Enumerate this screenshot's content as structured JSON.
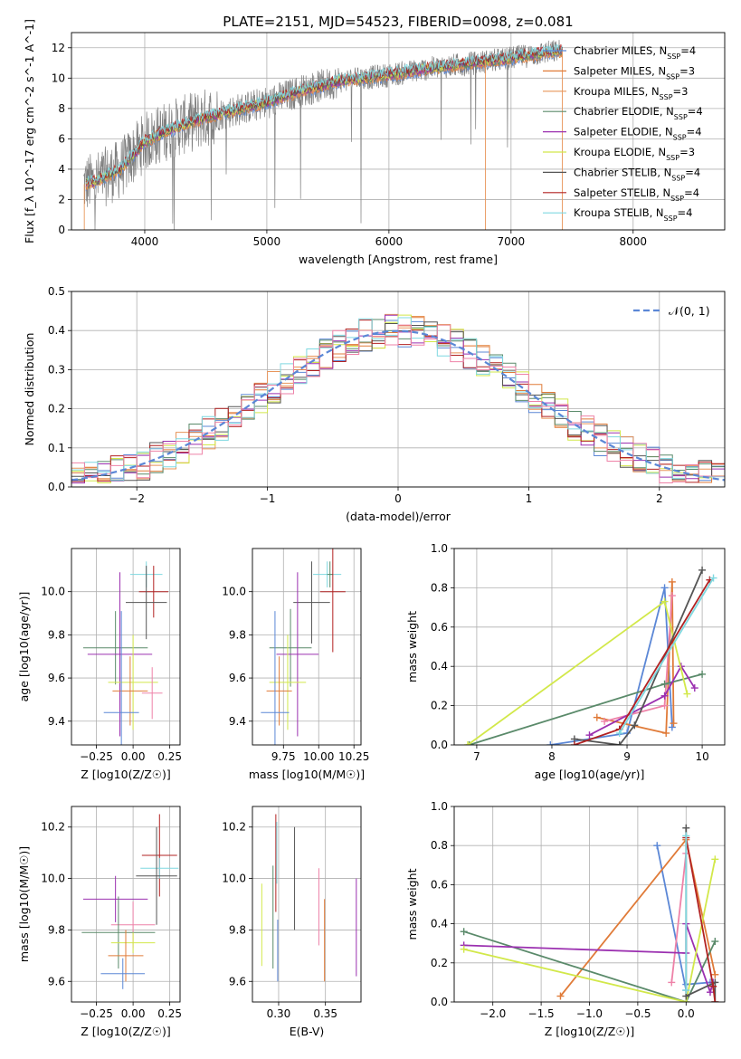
{
  "colors": {
    "chabrier_miles": "#5b87d6",
    "salpeter_miles": "#e07b39",
    "kroupa_miles": "#e8955a",
    "chabrier_elodie": "#5a8a6a",
    "salpeter_elodie": "#9b30b0",
    "kroupa_elodie": "#d2e84a",
    "chabrier_stelib": "#555555",
    "salpeter_stelib": "#b22222",
    "kroupa_stelib": "#7fd8e0",
    "extra_pink": "#ee82a8",
    "extra_blue": "#6a8fe0",
    "spectrum_gray": "#808080",
    "gaussian": "#5b87d6"
  },
  "chart_data": [
    {
      "id": "spectrum",
      "type": "line",
      "title": "PLATE=2151, MJD=54523, FIBERID=0098, z=0.081",
      "xlabel": "wavelength [Angstrom, rest frame]",
      "ylabel": "Flux [f_λ 10^-17 erg cm^-2 s^-1 A^-1]",
      "xlim": [
        3400,
        8750
      ],
      "ylim": [
        0,
        13
      ],
      "xticks": [
        "4000",
        "5000",
        "6000",
        "7000",
        "8000"
      ],
      "yticks": [
        "0",
        "2",
        "4",
        "6",
        "8",
        "10",
        "12"
      ],
      "legend": [
        {
          "label": "Chabrier MILES, N_SSP=4",
          "color": "#5b87d6"
        },
        {
          "label": "Salpeter MILES, N_SSP=3",
          "color": "#e07b39"
        },
        {
          "label": "Kroupa MILES, N_SSP=3",
          "color": "#e8955a"
        },
        {
          "label": "Chabrier ELODIE, N_SSP=4",
          "color": "#5a8a6a"
        },
        {
          "label": "Salpeter ELODIE, N_SSP=4",
          "color": "#9b30b0"
        },
        {
          "label": "Kroupa ELODIE, N_SSP=3",
          "color": "#d2e84a"
        },
        {
          "label": "Chabrier STELIB, N_SSP=4",
          "color": "#555555"
        },
        {
          "label": "Salpeter STELIB, N_SSP=4",
          "color": "#b22222"
        },
        {
          "label": "Kroupa STELIB, N_SSP=4",
          "color": "#7fd8e0"
        }
      ],
      "continuum": {
        "x": [
          3500,
          3600,
          3800,
          4000,
          4200,
          4500,
          4800,
          5000,
          5300,
          5600,
          6000,
          6300,
          6600,
          7000,
          7300,
          7420
        ],
        "y": [
          3.0,
          3.2,
          4.0,
          5.8,
          6.6,
          7.4,
          8.0,
          8.4,
          9.2,
          9.8,
          10.2,
          10.6,
          10.9,
          11.3,
          11.7,
          11.8
        ]
      }
    },
    {
      "id": "residuals",
      "type": "histogram",
      "xlabel": "(data-model)/error",
      "ylabel": "Normed distribution",
      "xlim": [
        -2.5,
        2.5
      ],
      "ylim": [
        0,
        0.5
      ],
      "xticks": [
        "−2",
        "−1",
        "0",
        "1",
        "2"
      ],
      "yticks": [
        "0.0",
        "0.1",
        "0.2",
        "0.3",
        "0.4",
        "0.5"
      ],
      "legend": [
        {
          "label": "𝒩(0, 1)",
          "color": "#5b87d6",
          "style": "dashed"
        }
      ]
    },
    {
      "id": "age_vs_z",
      "type": "errorbar",
      "xlabel": "Z [log10(Z/Z☉)]",
      "ylabel": "age  [log10(age/yr)]",
      "xlim": [
        -0.42,
        0.32
      ],
      "ylim": [
        9.29,
        10.2
      ],
      "xticks": [
        "−0.25",
        "0.00",
        "0.25"
      ],
      "yticks": [
        "9.4",
        "9.6",
        "9.8",
        "10.0"
      ],
      "points": [
        {
          "x": 0.09,
          "y": 10.08,
          "xerr": 0.11,
          "yerr": 0.06,
          "color": "#7fd8e0"
        },
        {
          "x": 0.14,
          "y": 10.0,
          "xerr": 0.1,
          "yerr": 0.12,
          "color": "#b22222"
        },
        {
          "x": 0.09,
          "y": 9.95,
          "xerr": 0.14,
          "yerr": 0.17,
          "color": "#555555"
        },
        {
          "x": -0.12,
          "y": 9.74,
          "xerr": 0.22,
          "yerr": 0.17,
          "color": "#5a8a6a"
        },
        {
          "x": -0.09,
          "y": 9.71,
          "xerr": 0.22,
          "yerr": 0.38,
          "color": "#9b30b0"
        },
        {
          "x": 0.0,
          "y": 9.58,
          "xerr": 0.17,
          "yerr": 0.22,
          "color": "#d2e84a"
        },
        {
          "x": -0.02,
          "y": 9.54,
          "xerr": 0.12,
          "yerr": 0.16,
          "color": "#e07b39"
        },
        {
          "x": 0.13,
          "y": 9.53,
          "xerr": 0.07,
          "yerr": 0.12,
          "color": "#ee82a8"
        },
        {
          "x": -0.08,
          "y": 9.44,
          "xerr": 0.12,
          "yerr": 0.47,
          "color": "#5b87d6"
        }
      ]
    },
    {
      "id": "age_vs_mass",
      "type": "errorbar",
      "xlabel": "mass [log10(M/M☉)]",
      "ylabel": "",
      "xlim": [
        9.53,
        10.3
      ],
      "ylim": [
        9.29,
        10.2
      ],
      "xticks": [
        "9.75",
        "10.00",
        "10.25"
      ],
      "yticks": [
        "9.4",
        "9.6",
        "9.8",
        "10.0"
      ],
      "points": [
        {
          "x": 10.06,
          "y": 10.08,
          "xerr": 0.1,
          "yerr": 0.06,
          "color": "#7fd8e0"
        },
        {
          "x": 10.08,
          "y": 10.08,
          "xerr": 0.02,
          "yerr": 0.06,
          "color": "#5a8a6a"
        },
        {
          "x": 10.1,
          "y": 10.0,
          "xerr": 0.09,
          "yerr": 0.28,
          "color": "#b22222"
        },
        {
          "x": 9.95,
          "y": 9.95,
          "xerr": 0.13,
          "yerr": 0.19,
          "color": "#555555"
        },
        {
          "x": 9.8,
          "y": 9.74,
          "xerr": 0.15,
          "yerr": 0.18,
          "color": "#5a8a6a"
        },
        {
          "x": 9.85,
          "y": 9.71,
          "xerr": 0.15,
          "yerr": 0.38,
          "color": "#9b30b0"
        },
        {
          "x": 9.78,
          "y": 9.58,
          "xerr": 0.13,
          "yerr": 0.22,
          "color": "#d2e84a"
        },
        {
          "x": 9.72,
          "y": 9.54,
          "xerr": 0.09,
          "yerr": 0.16,
          "color": "#e07b39"
        },
        {
          "x": 9.69,
          "y": 9.44,
          "xerr": 0.1,
          "yerr": 0.47,
          "color": "#5b87d6"
        }
      ]
    },
    {
      "id": "mass_weight_vs_age",
      "type": "line",
      "xlabel": "age  [log10(age/yr)]",
      "ylabel": "mass weight",
      "xlim": [
        6.7,
        10.3
      ],
      "ylim": [
        0,
        1.0
      ],
      "xticks": [
        "7",
        "8",
        "9",
        "10"
      ],
      "yticks": [
        "0.0",
        "0.2",
        "0.4",
        "0.6",
        "0.8",
        "1.0"
      ],
      "series": [
        {
          "color": "#5b87d6",
          "x": [
            7.98,
            9.0,
            9.5,
            9.6
          ],
          "y": [
            0.0,
            0.06,
            0.8,
            0.09
          ]
        },
        {
          "color": "#e07b39",
          "x": [
            8.6,
            9.52,
            9.6,
            9.62
          ],
          "y": [
            0.14,
            0.06,
            0.83,
            0.11
          ]
        },
        {
          "color": "#ee82a8",
          "x": [
            8.7,
            9.5,
            9.6
          ],
          "y": [
            0.12,
            0.2,
            0.76
          ]
        },
        {
          "color": "#5a8a6a",
          "x": [
            6.9,
            9.5,
            10.0
          ],
          "y": [
            0.0,
            0.31,
            0.36
          ]
        },
        {
          "color": "#9b30b0",
          "x": [
            8.5,
            9.5,
            9.72,
            9.9
          ],
          "y": [
            0.05,
            0.25,
            0.4,
            0.29
          ]
        },
        {
          "color": "#d2e84a",
          "x": [
            6.88,
            9.5,
            9.8
          ],
          "y": [
            0.0,
            0.73,
            0.26
          ]
        },
        {
          "color": "#555555",
          "x": [
            8.3,
            8.9,
            9.1,
            10.0
          ],
          "y": [
            0.03,
            0.0,
            0.1,
            0.89
          ]
        },
        {
          "color": "#b22222",
          "x": [
            8.3,
            8.9,
            10.1
          ],
          "y": [
            0.0,
            0.08,
            0.84
          ]
        },
        {
          "color": "#7fd8e0",
          "x": [
            8.9,
            10.15
          ],
          "y": [
            0.06,
            0.85
          ]
        }
      ]
    },
    {
      "id": "mass_vs_z",
      "type": "errorbar",
      "xlabel": "Z [log10(Z/Z☉)]",
      "ylabel": "mass [log10(M/M☉)]",
      "xlim": [
        -0.42,
        0.32
      ],
      "ylim": [
        9.52,
        10.28
      ],
      "xticks": [
        "−0.25",
        "0.00",
        "0.25"
      ],
      "yticks": [
        "9.6",
        "9.8",
        "10.0",
        "10.2"
      ],
      "points": [
        {
          "x": 0.18,
          "y": 10.09,
          "xerr": 0.12,
          "yerr": 0.16,
          "color": "#b22222"
        },
        {
          "x": 0.18,
          "y": 10.04,
          "xerr": 0.13,
          "yerr": 0.04,
          "color": "#7fd8e0"
        },
        {
          "x": 0.16,
          "y": 10.01,
          "xerr": 0.14,
          "yerr": 0.19,
          "color": "#555555"
        },
        {
          "x": -0.12,
          "y": 9.92,
          "xerr": 0.22,
          "yerr": 0.09,
          "color": "#9b30b0"
        },
        {
          "x": 0.0,
          "y": 9.82,
          "xerr": 0.15,
          "yerr": 0.09,
          "color": "#ee82a8"
        },
        {
          "x": -0.1,
          "y": 9.79,
          "xerr": 0.25,
          "yerr": 0.14,
          "color": "#5a8a6a"
        },
        {
          "x": 0.0,
          "y": 9.75,
          "xerr": 0.15,
          "yerr": 0.04,
          "color": "#d2e84a"
        },
        {
          "x": -0.05,
          "y": 9.7,
          "xerr": 0.12,
          "yerr": 0.1,
          "color": "#e07b39"
        },
        {
          "x": -0.07,
          "y": 9.63,
          "xerr": 0.15,
          "yerr": 0.06,
          "color": "#5b87d6"
        }
      ]
    },
    {
      "id": "mass_vs_ebv",
      "type": "errorbar",
      "xlabel": "E(B-V)",
      "ylabel": "",
      "xlim": [
        0.272,
        0.388
      ],
      "ylim": [
        9.52,
        10.28
      ],
      "xticks": [
        "0.30",
        "0.35"
      ],
      "yticks": [
        "9.6",
        "9.8",
        "10.0",
        "10.2"
      ],
      "points": [
        {
          "x": 0.282,
          "y": 9.82,
          "xerr": 0,
          "yerr": 0.16,
          "color": "#d2e84a"
        },
        {
          "x": 0.294,
          "y": 9.85,
          "xerr": 0,
          "yerr": 0.2,
          "color": "#5a8a6a"
        },
        {
          "x": 0.297,
          "y": 10.06,
          "xerr": 0,
          "yerr": 0.19,
          "color": "#b22222"
        },
        {
          "x": 0.298,
          "y": 10.1,
          "xerr": 0,
          "yerr": 0.12,
          "color": "#7fd8e0"
        },
        {
          "x": 0.299,
          "y": 9.72,
          "xerr": 0,
          "yerr": 0.12,
          "color": "#5b87d6"
        },
        {
          "x": 0.317,
          "y": 10.0,
          "xerr": 0,
          "yerr": 0.2,
          "color": "#555555"
        },
        {
          "x": 0.343,
          "y": 9.89,
          "xerr": 0,
          "yerr": 0.15,
          "color": "#ee82a8"
        },
        {
          "x": 0.349,
          "y": 9.76,
          "xerr": 0,
          "yerr": 0.16,
          "color": "#e07b39"
        },
        {
          "x": 0.383,
          "y": 9.81,
          "xerr": 0,
          "yerr": 0.19,
          "color": "#9b30b0"
        }
      ]
    },
    {
      "id": "mass_weight_vs_z",
      "type": "line",
      "xlabel": "Z [log10(Z/Z☉)]",
      "ylabel": "mass weight",
      "xlim": [
        -2.4,
        0.4
      ],
      "ylim": [
        0,
        1.0
      ],
      "xticks": [
        "−2.0",
        "−1.5",
        "−1.0",
        "−0.5",
        "0.0"
      ],
      "yticks": [
        "0.0",
        "0.2",
        "0.4",
        "0.6",
        "0.8",
        "1.0"
      ],
      "series": [
        {
          "color": "#5b87d6",
          "x": [
            -0.3,
            0.0,
            0.0,
            0.25
          ],
          "y": [
            0.8,
            0.06,
            0.09,
            0.1
          ]
        },
        {
          "color": "#e07b39",
          "x": [
            -1.3,
            0.0,
            0.3
          ],
          "y": [
            0.03,
            0.83,
            0.14
          ]
        },
        {
          "color": "#ee82a8",
          "x": [
            -0.15,
            0.0
          ],
          "y": [
            0.1,
            0.76
          ]
        },
        {
          "color": "#5a8a6a",
          "x": [
            -2.3,
            0.0,
            0.3
          ],
          "y": [
            0.36,
            0.0,
            0.31
          ]
        },
        {
          "color": "#9b30b0",
          "x": [
            -2.3,
            0.0,
            0.0,
            0.25,
            0.28
          ],
          "y": [
            0.29,
            0.25,
            0.4,
            0.05,
            0.1
          ]
        },
        {
          "color": "#d2e84a",
          "x": [
            -2.3,
            0.0,
            0.3
          ],
          "y": [
            0.27,
            0.0,
            0.73
          ]
        },
        {
          "color": "#555555",
          "x": [
            0.0,
            0.0,
            0.3,
            0.3
          ],
          "y": [
            0.89,
            0.03,
            0.1,
            0.0
          ]
        },
        {
          "color": "#b22222",
          "x": [
            0.0,
            0.28,
            0.3
          ],
          "y": [
            0.84,
            0.08,
            0.0
          ]
        },
        {
          "color": "#7fd8e0",
          "x": [
            0.0,
            0.0
          ],
          "y": [
            0.06,
            0.85
          ]
        }
      ]
    }
  ]
}
